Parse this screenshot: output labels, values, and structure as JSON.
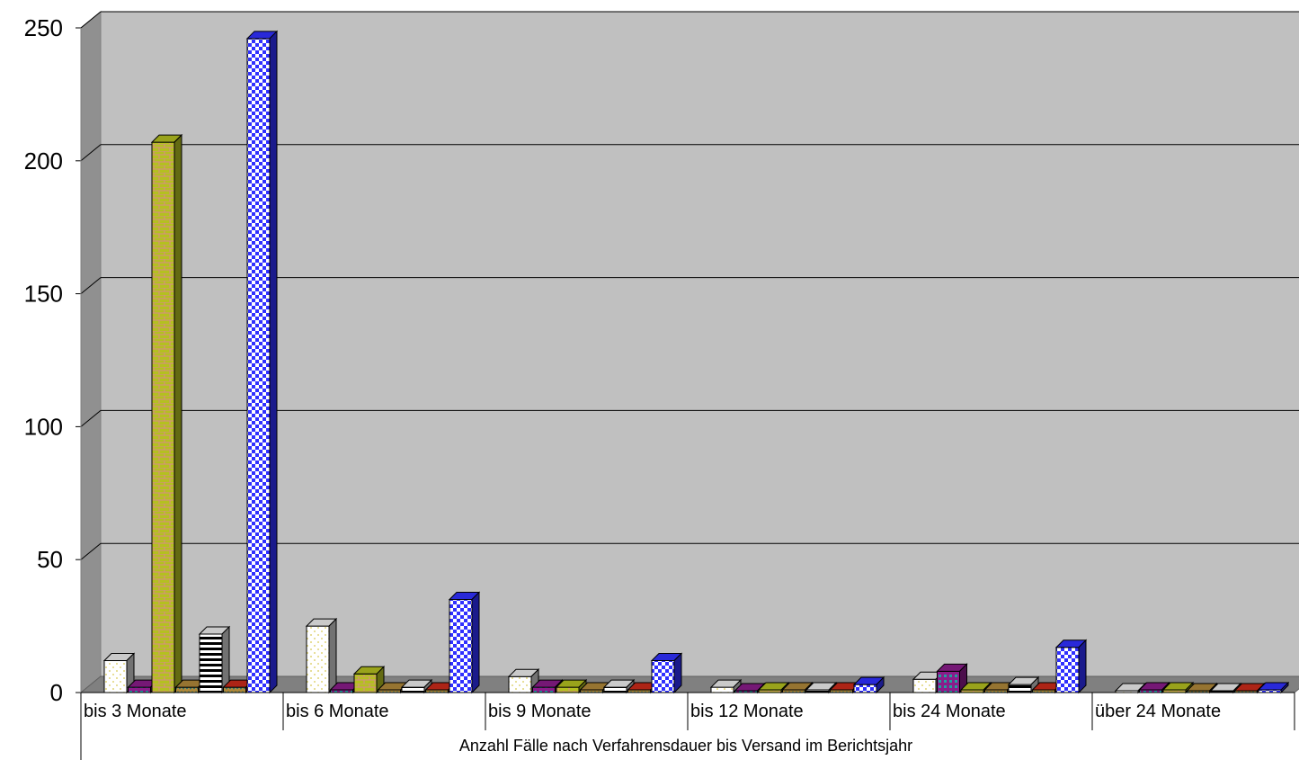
{
  "chart_data": {
    "type": "bar",
    "style": "3d-clustered-column",
    "categories": [
      "bis 3 Monate",
      "bis 6 Monate",
      "bis 9 Monate",
      "bis 12 Monate",
      "bis 24 Monate",
      "über 24 Monate"
    ],
    "series": [
      {
        "values": [
          12,
          25,
          6,
          2,
          5,
          0
        ],
        "color": "#ffffff",
        "pattern": "dots"
      },
      {
        "values": [
          2,
          1,
          2,
          0,
          8,
          1
        ],
        "color": "#8a1c8a",
        "pattern": "grid"
      },
      {
        "values": [
          207,
          7,
          2,
          1,
          1,
          1
        ],
        "color": "#b4c020",
        "pattern": "bricks"
      },
      {
        "values": [
          2,
          1,
          1,
          1,
          1,
          0
        ],
        "color": "#b0893a",
        "pattern": "zigzag"
      },
      {
        "values": [
          22,
          2,
          2,
          1,
          3,
          0
        ],
        "color": "#ffffff",
        "pattern": "hstripes"
      },
      {
        "values": [
          2,
          1,
          1,
          1,
          1,
          0
        ],
        "color": "#cc2a1a",
        "pattern": "zigzag"
      },
      {
        "values": [
          246,
          35,
          12,
          3,
          17,
          1
        ],
        "color": "#3030ff",
        "pattern": "checker"
      }
    ],
    "ylim": [
      0,
      250
    ],
    "yticks": [
      0,
      50,
      100,
      150,
      200,
      250
    ],
    "xlabel": "Anzahl Fälle nach Verfahrensdauer bis Versand im Berichtsjahr",
    "grid": true,
    "wall_color": "#c0c0c0",
    "floor_color": "#808080"
  }
}
